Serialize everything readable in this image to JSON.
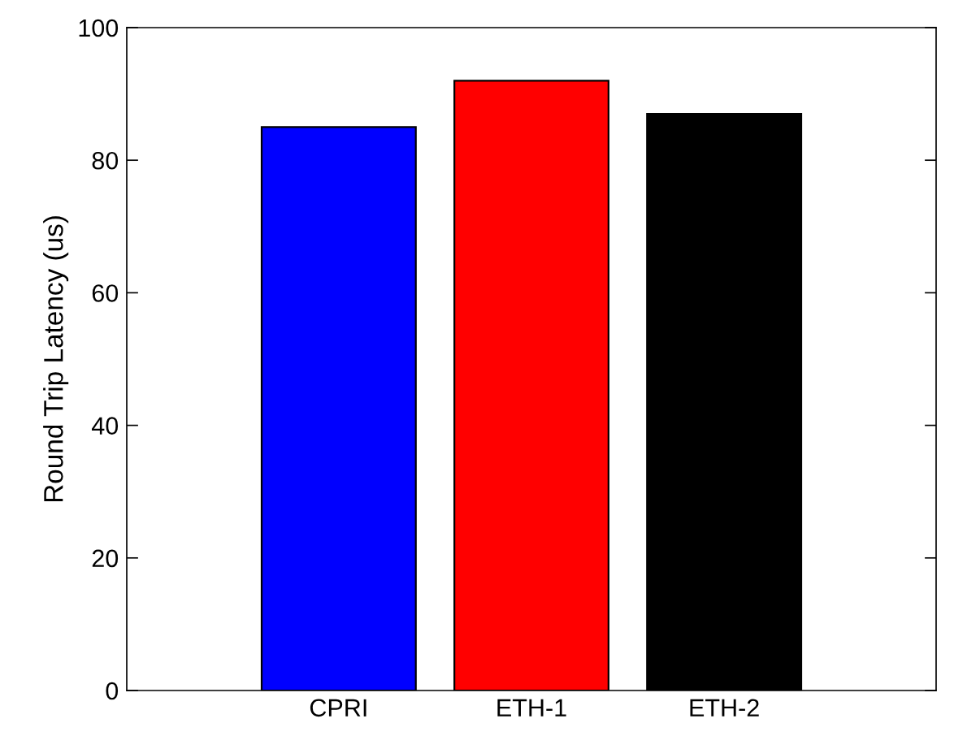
{
  "chart_data": {
    "type": "bar",
    "ylabel": "Round Trip Latency (us)",
    "categories": [
      "CPRI",
      "ETH-1",
      "ETH-2"
    ],
    "values": [
      85,
      92,
      87
    ],
    "colors": [
      "#0000ff",
      "#ff0000",
      "#000000"
    ],
    "ylim": [
      0,
      100
    ],
    "yticks": [
      0,
      20,
      40,
      60,
      80,
      100
    ],
    "grid": false
  }
}
